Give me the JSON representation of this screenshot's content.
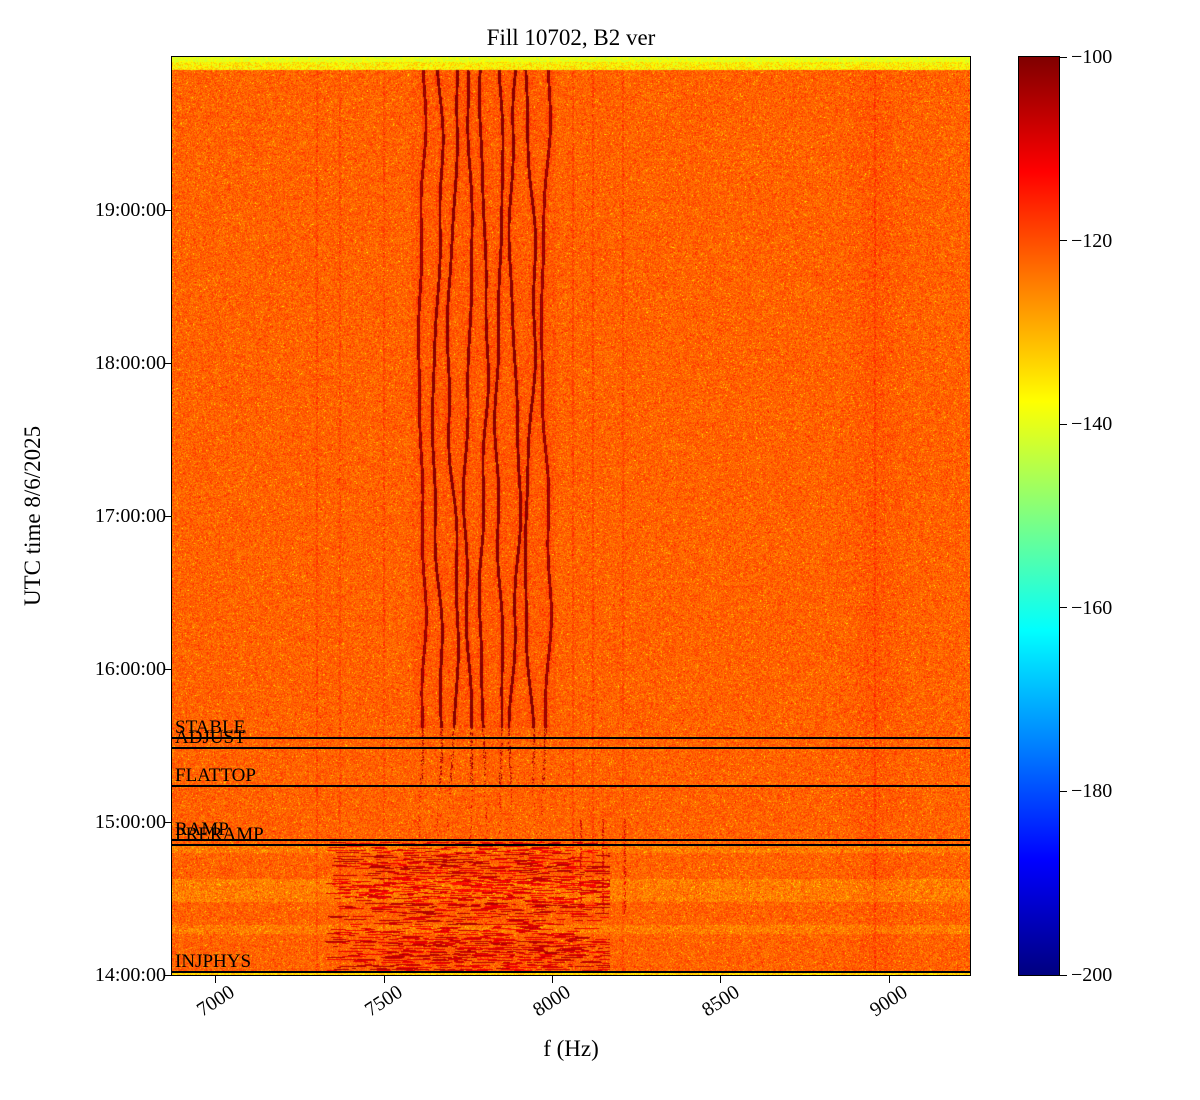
{
  "chart_data": {
    "type": "heatmap",
    "subtype": "spectrogram",
    "title": "Fill 10702, B2 ver",
    "xlabel": "f (Hz)",
    "ylabel": "UTC time 8/6/2025",
    "xlim_hz": [
      6870,
      9240
    ],
    "x_ticks_hz": [
      7000,
      7500,
      8000,
      8500,
      9000
    ],
    "time_start": "14:00:00",
    "time_end": "20:00:00",
    "y_ticks": [
      "19:00:00",
      "18:00:00",
      "17:00:00",
      "16:00:00",
      "15:00:00",
      "14:00:00"
    ],
    "colorbar": {
      "colormap": "jet",
      "vmin": -200,
      "vmax": -100,
      "ticks": [
        -100,
        -120,
        -140,
        -160,
        -180,
        -200
      ]
    },
    "annotations": [
      {
        "label": "STABLE",
        "time": "15:33"
      },
      {
        "label": "ADJUST",
        "time": "15:29"
      },
      {
        "label": "FLATTOP",
        "time": "15:14"
      },
      {
        "label": "RAMP",
        "time": "14:53"
      },
      {
        "label": "PRERAMP",
        "time": "14:51"
      },
      {
        "label": "INJPHYS",
        "time": "14:01"
      }
    ],
    "background_level_db": -122,
    "features": {
      "top_stripe": {
        "level_db": -138,
        "description": "yellow-green band across top edge"
      },
      "bottom_stripe_level_db": -133,
      "harmonic_lines_hz": [
        7612,
        7658,
        7704,
        7750,
        7796,
        7842,
        7888,
        7934,
        7980
      ],
      "harmonic_lines_level_db": -102,
      "harmonic_lines_visible_from": "15:37",
      "harmonic_wobble_hz": 12,
      "faint_lines_hz": [
        7300,
        7370,
        7500,
        8060,
        8120,
        8210,
        8958
      ],
      "injection_region": {
        "time_range": [
          "14:00",
          "14:52"
        ],
        "f_range_hz": [
          7320,
          8170
        ],
        "level_db": -107
      },
      "short_vertical_lines_hz": [
        8085,
        8150,
        8215
      ],
      "yellow_bands_hours": [
        [
          14.48,
          14.63
        ],
        [
          14.27,
          14.33
        ],
        [
          14.8,
          14.84
        ]
      ]
    }
  }
}
